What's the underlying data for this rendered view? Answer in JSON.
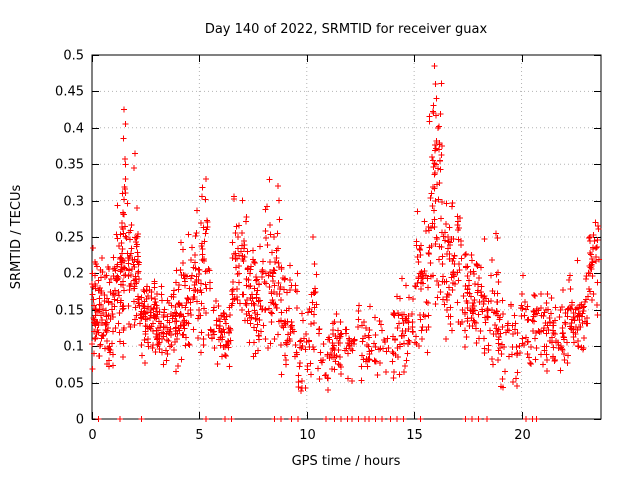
{
  "chart_data": {
    "type": "scatter",
    "title": "Day 140 of 2022, SRMTID for receiver guax",
    "xlabel": "GPS time / hours",
    "ylabel": "SRMTID / TECUs",
    "xlim": [
      0,
      23.7
    ],
    "ylim": [
      0,
      0.5
    ],
    "xticks": [
      0,
      5,
      10,
      15,
      20
    ],
    "xtick_labels": [
      "0",
      "5",
      "10",
      "15",
      "20"
    ],
    "yticks": [
      0,
      0.05,
      0.1,
      0.15,
      0.2,
      0.25,
      0.3,
      0.35,
      0.4,
      0.45,
      0.5
    ],
    "ytick_labels": [
      "0",
      "0.05",
      "0.1",
      "0.15",
      "0.2",
      "0.25",
      "0.3",
      "0.35",
      "0.4",
      "0.45",
      "0.5"
    ],
    "grid": true,
    "legend": "none",
    "marker": {
      "shape": "plus",
      "color": "#ff0000",
      "size": 7
    },
    "series_name": "SRMTID",
    "seed": 42,
    "clusters": [
      {
        "x0": 0.0,
        "x1": 0.5,
        "n": 60,
        "mean": 0.16,
        "sd": 0.04,
        "min": 0.05,
        "max": 0.24
      },
      {
        "x0": 0.5,
        "x1": 1.0,
        "n": 50,
        "mean": 0.14,
        "sd": 0.035,
        "min": 0.06,
        "max": 0.22
      },
      {
        "x0": 1.0,
        "x1": 1.5,
        "n": 60,
        "mean": 0.19,
        "sd": 0.05,
        "min": 0.08,
        "max": 0.3
      },
      {
        "x0": 1.4,
        "x1": 1.7,
        "n": 25,
        "mean": 0.3,
        "sd": 0.06,
        "min": 0.18,
        "max": 0.43
      },
      {
        "x0": 1.7,
        "x1": 2.2,
        "n": 60,
        "mean": 0.2,
        "sd": 0.05,
        "min": 0.1,
        "max": 0.37
      },
      {
        "x0": 2.2,
        "x1": 3.0,
        "n": 70,
        "mean": 0.14,
        "sd": 0.03,
        "min": 0.07,
        "max": 0.25
      },
      {
        "x0": 3.0,
        "x1": 4.0,
        "n": 80,
        "mean": 0.13,
        "sd": 0.03,
        "min": 0.06,
        "max": 0.22
      },
      {
        "x0": 4.0,
        "x1": 4.6,
        "n": 50,
        "mean": 0.15,
        "sd": 0.035,
        "min": 0.08,
        "max": 0.28
      },
      {
        "x0": 4.6,
        "x1": 5.1,
        "n": 40,
        "mean": 0.18,
        "sd": 0.05,
        "min": 0.09,
        "max": 0.3
      },
      {
        "x0": 5.1,
        "x1": 5.5,
        "n": 30,
        "mean": 0.2,
        "sd": 0.06,
        "min": 0.1,
        "max": 0.35
      },
      {
        "x0": 5.5,
        "x1": 6.5,
        "n": 60,
        "mean": 0.12,
        "sd": 0.025,
        "min": 0.06,
        "max": 0.18
      },
      {
        "x0": 6.5,
        "x1": 7.3,
        "n": 60,
        "mean": 0.2,
        "sd": 0.045,
        "min": 0.1,
        "max": 0.31
      },
      {
        "x0": 7.3,
        "x1": 8.0,
        "n": 60,
        "mean": 0.16,
        "sd": 0.04,
        "min": 0.08,
        "max": 0.26
      },
      {
        "x0": 8.0,
        "x1": 8.8,
        "n": 60,
        "mean": 0.19,
        "sd": 0.05,
        "min": 0.09,
        "max": 0.33
      },
      {
        "x0": 8.8,
        "x1": 9.6,
        "n": 50,
        "mean": 0.14,
        "sd": 0.04,
        "min": 0.05,
        "max": 0.25
      },
      {
        "x0": 9.6,
        "x1": 10.2,
        "n": 30,
        "mean": 0.1,
        "sd": 0.035,
        "min": 0.03,
        "max": 0.18
      },
      {
        "x0": 10.2,
        "x1": 10.5,
        "n": 15,
        "mean": 0.15,
        "sd": 0.05,
        "min": 0.06,
        "max": 0.25
      },
      {
        "x0": 10.5,
        "x1": 11.2,
        "n": 25,
        "mean": 0.09,
        "sd": 0.025,
        "min": 0.04,
        "max": 0.14
      },
      {
        "x0": 11.2,
        "x1": 12.2,
        "n": 50,
        "mean": 0.1,
        "sd": 0.02,
        "min": 0.05,
        "max": 0.15
      },
      {
        "x0": 12.2,
        "x1": 13.2,
        "n": 35,
        "mean": 0.11,
        "sd": 0.025,
        "min": 0.05,
        "max": 0.16
      },
      {
        "x0": 13.2,
        "x1": 14.2,
        "n": 30,
        "mean": 0.1,
        "sd": 0.03,
        "min": 0.04,
        "max": 0.17
      },
      {
        "x0": 14.2,
        "x1": 15.0,
        "n": 45,
        "mean": 0.12,
        "sd": 0.03,
        "min": 0.05,
        "max": 0.2
      },
      {
        "x0": 15.0,
        "x1": 15.7,
        "n": 50,
        "mean": 0.17,
        "sd": 0.05,
        "min": 0.08,
        "max": 0.3
      },
      {
        "x0": 15.7,
        "x1": 16.3,
        "n": 60,
        "mean": 0.3,
        "sd": 0.08,
        "min": 0.15,
        "max": 0.485
      },
      {
        "x0": 16.3,
        "x1": 17.2,
        "n": 70,
        "mean": 0.21,
        "sd": 0.045,
        "min": 0.1,
        "max": 0.32
      },
      {
        "x0": 17.2,
        "x1": 18.2,
        "n": 70,
        "mean": 0.17,
        "sd": 0.04,
        "min": 0.08,
        "max": 0.27
      },
      {
        "x0": 18.2,
        "x1": 19.0,
        "n": 55,
        "mean": 0.14,
        "sd": 0.045,
        "min": 0.05,
        "max": 0.26
      },
      {
        "x0": 19.0,
        "x1": 20.0,
        "n": 40,
        "mean": 0.1,
        "sd": 0.03,
        "min": 0.04,
        "max": 0.18
      },
      {
        "x0": 20.0,
        "x1": 21.0,
        "n": 45,
        "mean": 0.13,
        "sd": 0.03,
        "min": 0.05,
        "max": 0.2
      },
      {
        "x0": 21.0,
        "x1": 22.2,
        "n": 70,
        "mean": 0.12,
        "sd": 0.025,
        "min": 0.06,
        "max": 0.18
      },
      {
        "x0": 22.2,
        "x1": 23.1,
        "n": 60,
        "mean": 0.14,
        "sd": 0.03,
        "min": 0.07,
        "max": 0.23
      },
      {
        "x0": 23.1,
        "x1": 23.6,
        "n": 35,
        "mean": 0.2,
        "sd": 0.04,
        "min": 0.12,
        "max": 0.27
      }
    ],
    "peak_points": [
      {
        "x": 0.05,
        "y": 0.235
      },
      {
        "x": 1.5,
        "y": 0.425
      },
      {
        "x": 1.55,
        "y": 0.405
      },
      {
        "x": 2.0,
        "y": 0.365
      },
      {
        "x": 1.95,
        "y": 0.345
      },
      {
        "x": 5.3,
        "y": 0.33
      },
      {
        "x": 7.0,
        "y": 0.3
      },
      {
        "x": 8.65,
        "y": 0.32
      },
      {
        "x": 8.7,
        "y": 0.3
      },
      {
        "x": 10.3,
        "y": 0.25
      },
      {
        "x": 15.9,
        "y": 0.42
      },
      {
        "x": 15.95,
        "y": 0.485
      },
      {
        "x": 16.0,
        "y": 0.46
      },
      {
        "x": 16.05,
        "y": 0.44
      },
      {
        "x": 16.1,
        "y": 0.4
      },
      {
        "x": 16.15,
        "y": 0.37
      },
      {
        "x": 18.8,
        "y": 0.255
      },
      {
        "x": 23.45,
        "y": 0.27
      },
      {
        "x": 23.55,
        "y": 0.265
      }
    ],
    "zero_marker_x": [
      0.3,
      1.3,
      2.3,
      5.3,
      6.2,
      6.5,
      8.5,
      8.8,
      9.3,
      9.6,
      10.9,
      11.3,
      11.6,
      11.9,
      12.1,
      12.4,
      12.7,
      12.9,
      13.2,
      13.5,
      13.9,
      14.2,
      14.5,
      15.3,
      17.4,
      17.7,
      18.0,
      18.4,
      20.2,
      20.5,
      20.7
    ],
    "colors": {
      "marker": "#ff0000",
      "axis": "#000000",
      "grid": "#b4b4b4",
      "background": "#ffffff",
      "text": "#000000"
    }
  }
}
